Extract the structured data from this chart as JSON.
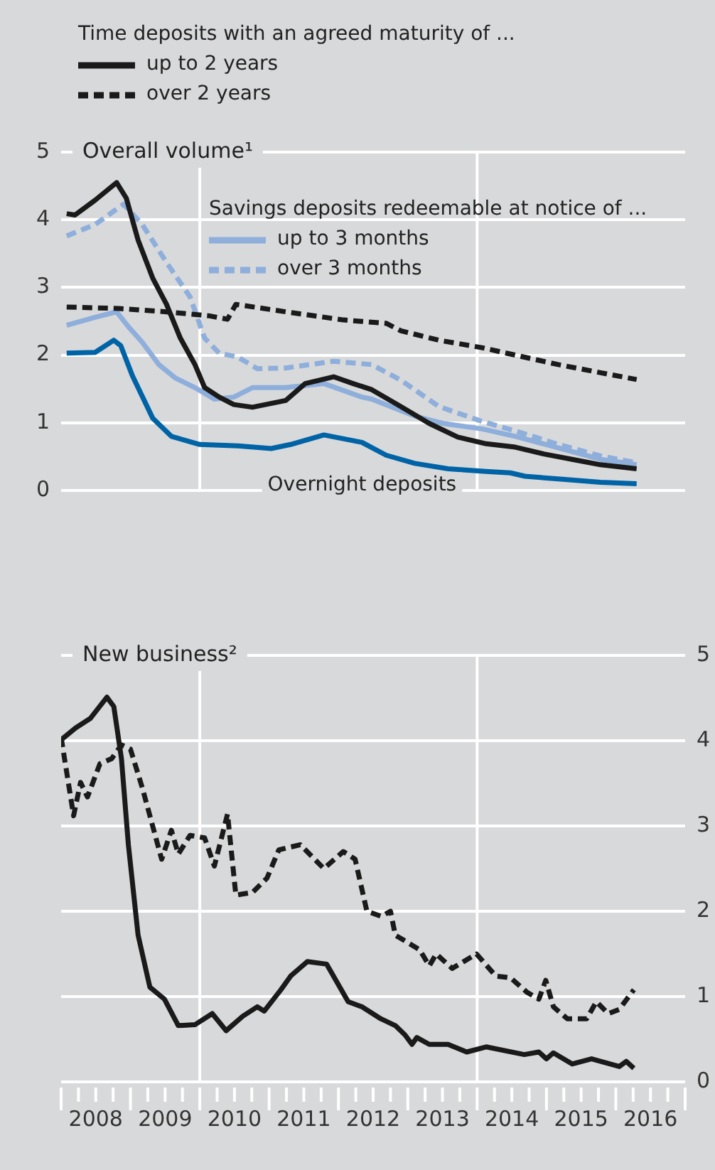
{
  "chart_data": [
    {
      "type": "line",
      "title": "Overall volume¹",
      "legend_title": "Time deposits with an agreed maturity of ...",
      "annotations": [
        "Savings deposits redeemable at notice of ..."
      ],
      "legend": "top left",
      "grid": "y",
      "tick_labels": "y",
      "xlim": [
        2008,
        2017
      ],
      "ylim": [
        0,
        5
      ],
      "yticks": [
        0,
        1,
        2,
        3,
        4,
        5
      ],
      "ref_lines": [
        {
          "axis": "x",
          "value": 2010,
          "color": "#ffffff"
        },
        {
          "axis": "x",
          "value": 2014,
          "color": "#ffffff"
        }
      ],
      "series": [
        {
          "name": "up to 2 years",
          "color": "#1a1a1a",
          "line_style": "solid",
          "x": [
            2008.08,
            2008.2,
            2008.49,
            2008.8,
            2008.94,
            2009.11,
            2009.32,
            2009.52,
            2009.72,
            2009.93,
            2010.07,
            2010.28,
            2010.49,
            2010.76,
            2011.24,
            2011.52,
            2011.93,
            2012.21,
            2012.48,
            2012.9,
            2013.31,
            2013.72,
            2014.13,
            2014.55,
            2014.96,
            2015.37,
            2015.78,
            2016.3
          ],
          "values": [
            4.09,
            4.07,
            4.29,
            4.55,
            4.32,
            3.7,
            3.14,
            2.75,
            2.25,
            1.86,
            1.52,
            1.38,
            1.27,
            1.23,
            1.33,
            1.58,
            1.68,
            1.58,
            1.49,
            1.24,
            0.99,
            0.79,
            0.69,
            0.64,
            0.54,
            0.46,
            0.38,
            0.32
          ]
        },
        {
          "name": "over 2 years",
          "color": "#1a1a1a",
          "line_style": "dashed",
          "x": [
            2008.08,
            2008.83,
            2009.52,
            2010.14,
            2010.4,
            2010.52,
            2011.24,
            2012.07,
            2012.69,
            2012.9,
            2013.45,
            2014.07,
            2014.55,
            2015.17,
            2015.78,
            2016.3
          ],
          "values": [
            2.71,
            2.69,
            2.64,
            2.58,
            2.53,
            2.75,
            2.64,
            2.52,
            2.47,
            2.36,
            2.22,
            2.11,
            2.0,
            1.86,
            1.74,
            1.64
          ]
        },
        {
          "name": "up to 3 months",
          "color": "#8eaedb",
          "line_style": "solid",
          "x": [
            2008.08,
            2008.49,
            2008.8,
            2008.97,
            2009.17,
            2009.41,
            2009.65,
            2009.93,
            2010.21,
            2010.49,
            2010.76,
            2011.24,
            2011.79,
            2012.34,
            2012.48,
            2013.1,
            2013.51,
            2014.07,
            2014.55,
            2015.17,
            2015.78,
            2016.3
          ],
          "values": [
            2.44,
            2.56,
            2.64,
            2.42,
            2.19,
            1.86,
            1.66,
            1.52,
            1.35,
            1.38,
            1.52,
            1.52,
            1.58,
            1.38,
            1.35,
            1.1,
            0.99,
            0.91,
            0.8,
            0.63,
            0.46,
            0.38
          ]
        },
        {
          "name": "over 3 months",
          "color": "#8eaedb",
          "line_style": "dashed",
          "x": [
            2008.08,
            2008.49,
            2008.9,
            2009.17,
            2009.52,
            2009.86,
            2010.07,
            2010.28,
            2010.55,
            2010.83,
            2011.24,
            2011.93,
            2012.48,
            2012.9,
            2013.45,
            2014.07,
            2014.55,
            2015.17,
            2015.78,
            2016.3
          ],
          "values": [
            3.76,
            3.93,
            4.23,
            3.93,
            3.37,
            2.86,
            2.25,
            2.03,
            1.97,
            1.8,
            1.81,
            1.91,
            1.86,
            1.63,
            1.24,
            1.02,
            0.88,
            0.68,
            0.51,
            0.41
          ]
        },
        {
          "name": "Overnight deposits",
          "color": "#0063a5",
          "line_style": "solid",
          "x": [
            2008.08,
            2008.49,
            2008.76,
            2008.86,
            2009.03,
            2009.32,
            2009.59,
            2010.0,
            2010.55,
            2011.03,
            2011.31,
            2011.79,
            2012.34,
            2012.69,
            2013.1,
            2013.58,
            2014.13,
            2014.48,
            2014.69,
            2015.17,
            2015.78,
            2016.3
          ],
          "values": [
            2.03,
            2.04,
            2.22,
            2.14,
            1.69,
            1.07,
            0.8,
            0.68,
            0.66,
            0.62,
            0.68,
            0.82,
            0.71,
            0.52,
            0.4,
            0.32,
            0.28,
            0.26,
            0.21,
            0.17,
            0.12,
            0.1
          ]
        }
      ]
    },
    {
      "type": "line",
      "title": "New business²",
      "grid": "y",
      "xlim": [
        2008,
        2017
      ],
      "xticks": [
        {
          "value": 2008,
          "label": null
        },
        {
          "value": 2008.25,
          "label": null
        },
        {
          "value": 2008.5,
          "label": "2008"
        },
        {
          "value": 2008.75,
          "label": null
        },
        {
          "value": 2009,
          "label": null
        },
        {
          "value": 2009.25,
          "label": null
        },
        {
          "value": 2009.5,
          "label": "2009"
        },
        {
          "value": 2009.75,
          "label": null
        },
        {
          "value": 2010,
          "label": null
        },
        {
          "value": 2010.25,
          "label": null
        },
        {
          "value": 2010.5,
          "label": "2010"
        },
        {
          "value": 2010.75,
          "label": null
        },
        {
          "value": 2011,
          "label": null
        },
        {
          "value": 2011.25,
          "label": null
        },
        {
          "value": 2011.5,
          "label": "2011"
        },
        {
          "value": 2011.75,
          "label": null
        },
        {
          "value": 2012,
          "label": null
        },
        {
          "value": 2012.25,
          "label": null
        },
        {
          "value": 2012.5,
          "label": "2012"
        },
        {
          "value": 2012.75,
          "label": null
        },
        {
          "value": 2013,
          "label": null
        },
        {
          "value": 2013.25,
          "label": null
        },
        {
          "value": 2013.5,
          "label": "2013"
        },
        {
          "value": 2013.75,
          "label": null
        },
        {
          "value": 2014,
          "label": null
        },
        {
          "value": 2014.25,
          "label": null
        },
        {
          "value": 2014.5,
          "label": "2014"
        },
        {
          "value": 2014.75,
          "label": null
        },
        {
          "value": 2015,
          "label": null
        },
        {
          "value": 2015.25,
          "label": null
        },
        {
          "value": 2015.5,
          "label": "2015"
        },
        {
          "value": 2015.75,
          "label": null
        },
        {
          "value": 2016,
          "label": null
        },
        {
          "value": 2016.25,
          "label": null
        },
        {
          "value": 2016.5,
          "label": "2016"
        },
        {
          "value": 2016.75,
          "label": null
        },
        {
          "value": 2017,
          "label": null
        }
      ],
      "y2lim": [
        0,
        5
      ],
      "y2ticks": [
        0,
        1,
        2,
        3,
        4,
        5
      ],
      "ref_lines": [
        {
          "axis": "x",
          "value": 2010,
          "color": "#ffffff"
        },
        {
          "axis": "x",
          "value": 2014,
          "color": "#ffffff"
        }
      ],
      "series": [
        {
          "color": "#1a1a1a",
          "line_style": "solid",
          "axis": "y2",
          "x": [
            2008.0,
            2008.21,
            2008.42,
            2008.66,
            2008.76,
            2008.87,
            2008.97,
            2009.11,
            2009.28,
            2009.49,
            2009.69,
            2009.93,
            2010.18,
            2010.38,
            2010.62,
            2010.83,
            2010.93,
            2011.17,
            2011.31,
            2011.55,
            2011.83,
            2012.14,
            2012.34,
            2012.61,
            2012.82,
            2012.96,
            2013.06,
            2013.13,
            2013.31,
            2013.58,
            2013.85,
            2014.13,
            2014.68,
            2014.89,
            2015.0,
            2015.1,
            2015.37,
            2015.65,
            2016.05,
            2016.15,
            2016.26
          ],
          "values": [
            4.01,
            4.15,
            4.26,
            4.51,
            4.4,
            3.79,
            2.78,
            1.72,
            1.11,
            0.97,
            0.66,
            0.67,
            0.8,
            0.6,
            0.77,
            0.88,
            0.83,
            1.08,
            1.24,
            1.41,
            1.38,
            0.94,
            0.88,
            0.74,
            0.66,
            0.55,
            0.44,
            0.52,
            0.44,
            0.44,
            0.35,
            0.41,
            0.32,
            0.35,
            0.27,
            0.34,
            0.21,
            0.27,
            0.18,
            0.24,
            0.16
          ]
        },
        {
          "color": "#1a1a1a",
          "line_style": "dashed",
          "axis": "y2",
          "x": [
            2008.0,
            2008.18,
            2008.28,
            2008.38,
            2008.56,
            2008.73,
            2008.87,
            2009.0,
            2009.17,
            2009.45,
            2009.59,
            2009.69,
            2009.86,
            2010.07,
            2010.21,
            2010.4,
            2010.52,
            2010.76,
            2010.97,
            2011.14,
            2011.45,
            2011.79,
            2012.07,
            2012.24,
            2012.41,
            2012.62,
            2012.75,
            2012.82,
            2013.17,
            2013.31,
            2013.41,
            2013.64,
            2013.99,
            2014.27,
            2014.48,
            2014.72,
            2014.89,
            2014.99,
            2015.1,
            2015.3,
            2015.58,
            2015.72,
            2015.89,
            2016.05,
            2016.26
          ],
          "values": [
            4.04,
            3.12,
            3.51,
            3.34,
            3.73,
            3.79,
            3.95,
            3.9,
            3.45,
            2.61,
            2.95,
            2.67,
            2.89,
            2.86,
            2.53,
            3.14,
            2.19,
            2.22,
            2.39,
            2.72,
            2.78,
            2.5,
            2.7,
            2.61,
            2.0,
            1.94,
            2.0,
            1.72,
            1.55,
            1.36,
            1.5,
            1.33,
            1.5,
            1.24,
            1.22,
            1.05,
            0.97,
            1.19,
            0.88,
            0.74,
            0.74,
            0.94,
            0.8,
            0.85,
            1.08
          ]
        }
      ]
    }
  ]
}
